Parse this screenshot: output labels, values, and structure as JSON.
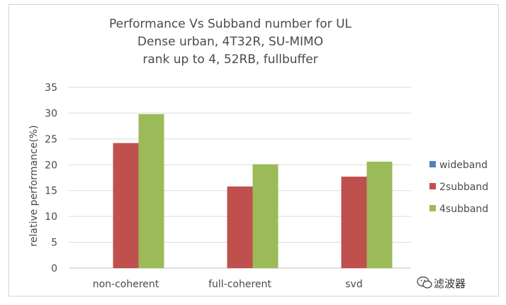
{
  "chart_data": {
    "type": "bar",
    "title": [
      "Performance Vs Subband number for UL",
      "Dense urban, 4T32R, SU-MIMO",
      "rank up to 4, 52RB, fullbuffer"
    ],
    "xlabel": "",
    "ylabel": "relative performance(%)",
    "ylim": [
      0,
      35
    ],
    "yticks": [
      "0",
      "5",
      "10",
      "15",
      "20",
      "25",
      "30",
      "35"
    ],
    "categories": [
      "non-coherent",
      "full-coherent",
      "svd"
    ],
    "series": [
      {
        "name": "wideband",
        "color": "#4f81bd",
        "values": [
          0,
          0,
          0
        ]
      },
      {
        "name": "2subband",
        "color": "#c0504d",
        "values": [
          24.2,
          15.8,
          17.7
        ]
      },
      {
        "name": "4subband",
        "color": "#9bbb59",
        "values": [
          29.8,
          20.1,
          20.6
        ]
      }
    ],
    "grid": true,
    "legend": "right"
  },
  "watermark": {
    "text": "滤波器",
    "icon": "wechat-icon"
  }
}
